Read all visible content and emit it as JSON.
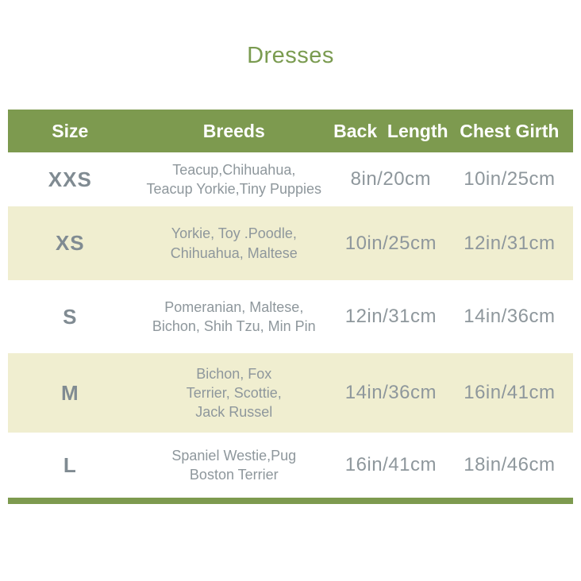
{
  "page": {
    "title": "Dresses"
  },
  "colors": {
    "title_green": "#7a9b50",
    "header_bg": "#7d9a4f",
    "header_text": "#ffffff",
    "row_white": "#ffffff",
    "row_cream": "#f0eed0",
    "text_gray": "#8e979c",
    "size_gray": "#808b92",
    "bottom_bar": "#7d9a4f"
  },
  "table": {
    "columns": [
      {
        "key": "size",
        "label": "Size"
      },
      {
        "key": "breeds",
        "label": "Breeds"
      },
      {
        "key": "back",
        "label": "Back  Length"
      },
      {
        "key": "chest",
        "label": "Chest Girth"
      }
    ],
    "rows": [
      {
        "size": "XXS",
        "breeds": [
          "Teacup,Chihuahua,",
          "Teacup Yorkie,Tiny Puppies"
        ],
        "back_length": "8in/20cm",
        "chest_girth": "10in/25cm"
      },
      {
        "size": "XS",
        "breeds": [
          "Yorkie, Toy .Poodle,",
          "Chihuahua, Maltese"
        ],
        "back_length": "10in/25cm",
        "chest_girth": "12in/31cm"
      },
      {
        "size": "S",
        "breeds": [
          "Pomeranian, Maltese,",
          "Bichon, Shih Tzu, Min Pin"
        ],
        "back_length": "12in/31cm",
        "chest_girth": "14in/36cm"
      },
      {
        "size": "M",
        "breeds": [
          "Bichon, Fox",
          "Terrier, Scottie,",
          "Jack Russel"
        ],
        "back_length": "14in/36cm",
        "chest_girth": "16in/41cm"
      },
      {
        "size": "L",
        "breeds": [
          "Spaniel Westie,Pug",
          "Boston Terrier"
        ],
        "back_length": "16in/41cm",
        "chest_girth": "18in/46cm"
      }
    ]
  }
}
